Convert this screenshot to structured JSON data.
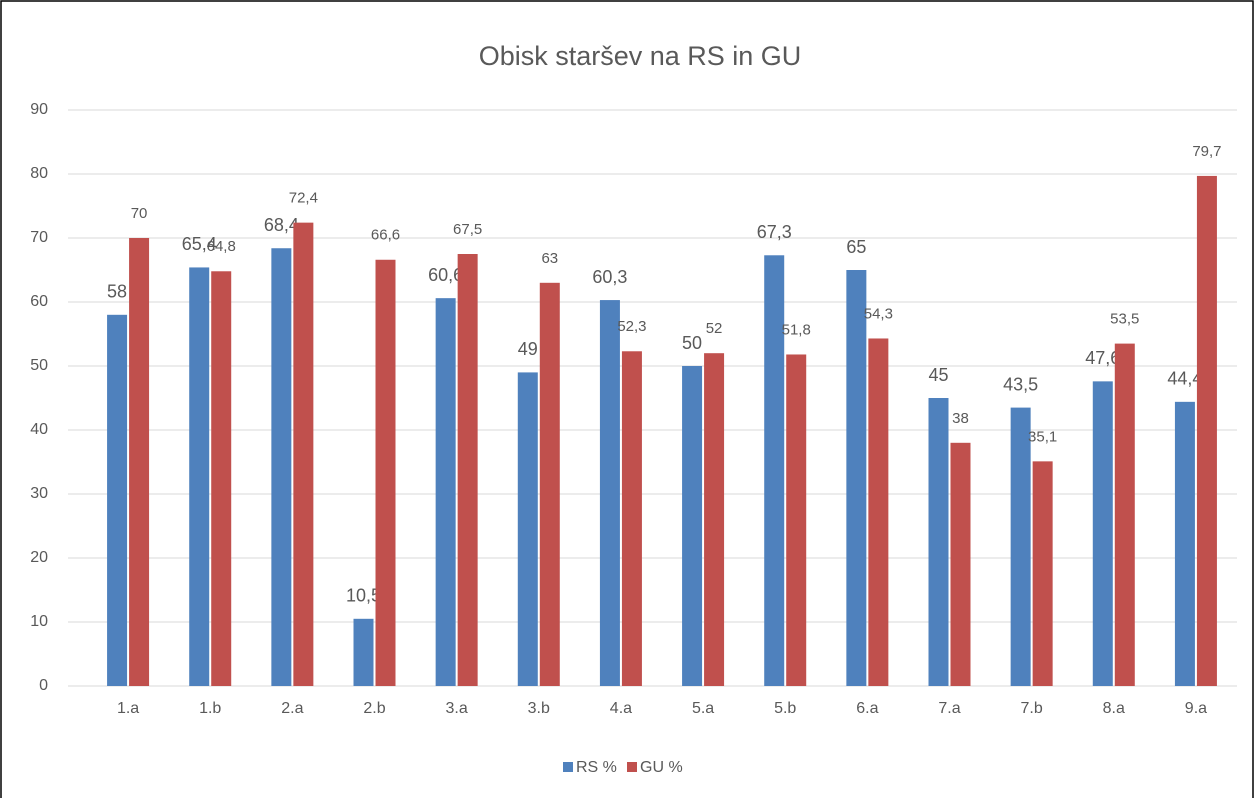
{
  "chart_data": {
    "type": "bar",
    "title": "Obisk staršev na RS in GU",
    "categories": [
      "1.a",
      "1.b",
      "2.a",
      "2.b",
      "3.a",
      "3.b",
      "4.a",
      "5.a",
      "5.b",
      "6.a",
      "7.a",
      "7.b",
      "8.a",
      "9.a"
    ],
    "series": [
      {
        "name": "RS %",
        "color": "#4f81bd",
        "values": [
          58,
          65.4,
          68.4,
          10.5,
          60.6,
          49,
          60.3,
          50,
          67.3,
          65,
          45,
          43.5,
          47.6,
          44.4
        ],
        "value_labels": [
          "58",
          "65,4",
          "68,4",
          "10,5",
          "60,6",
          "49",
          "60,3",
          "50",
          "67,3",
          "65",
          "45",
          "43,5",
          "47,6",
          "44,4"
        ]
      },
      {
        "name": "GU %",
        "color": "#c0504d",
        "values": [
          70,
          64.8,
          72.4,
          66.6,
          67.5,
          63,
          52.3,
          52,
          51.8,
          54.3,
          38,
          35.1,
          53.5,
          79.7
        ],
        "value_labels": [
          "70",
          "64,8",
          "72,4",
          "66,6",
          "67,5",
          "63",
          "52,3",
          "52",
          "51,8",
          "54,3",
          "38",
          "35,1",
          "53,5",
          "79,7"
        ]
      }
    ],
    "ylim": [
      0,
      90
    ],
    "yticks": [
      0,
      10,
      20,
      30,
      40,
      50,
      60,
      70,
      80,
      90
    ],
    "grid": true,
    "legend": "bottom"
  }
}
